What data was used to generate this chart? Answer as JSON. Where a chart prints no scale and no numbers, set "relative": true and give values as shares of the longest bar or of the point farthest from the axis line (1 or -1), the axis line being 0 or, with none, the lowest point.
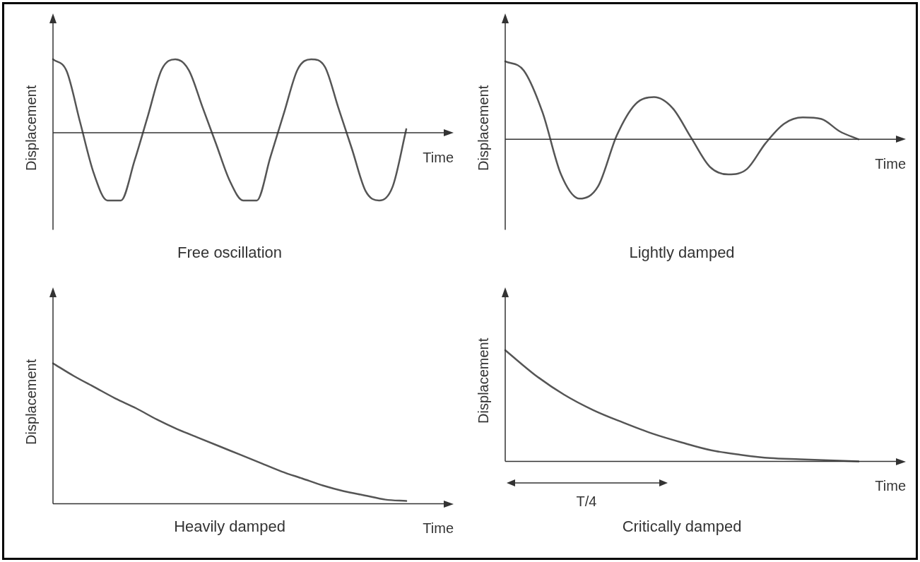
{
  "chart_data": [
    {
      "type": "line",
      "title": "Free oscillation",
      "xlabel": "Time",
      "ylabel": "Displacement",
      "relative": true,
      "categories": [
        null,
        null,
        null,
        null,
        null,
        null,
        null,
        null,
        null,
        null,
        null,
        null,
        null,
        null,
        null,
        null,
        null,
        null,
        null,
        null,
        null,
        null,
        null,
        null,
        null,
        null,
        null
      ],
      "series": [
        {
          "color": "#555555",
          "values": [
            1,
            0.84,
            0.14,
            -0.55,
            -0.92,
            -0.92,
            -0.38,
            0.24,
            0.86,
            1,
            0.85,
            0.35,
            -0.15,
            -0.65,
            -0.92,
            -0.92,
            -0.33,
            0.27,
            0.86,
            1,
            0.9,
            0.34,
            -0.22,
            -0.79,
            -0.92,
            -0.73,
            0.05
          ]
        }
      ]
    },
    {
      "type": "line",
      "title": "Lightly damped",
      "xlabel": "Time",
      "ylabel": "Displacement",
      "relative": true,
      "categories": [
        null,
        null,
        null,
        null,
        null,
        null,
        null,
        null,
        null,
        null,
        null,
        null,
        null,
        null,
        null,
        null,
        null,
        null,
        null,
        null
      ],
      "series": [
        {
          "color": "#555555",
          "values": [
            1,
            0.88,
            0.35,
            -0.45,
            -0.76,
            -0.6,
            0.05,
            0.45,
            0.54,
            0.4,
            0.02,
            -0.35,
            -0.45,
            -0.38,
            -0.05,
            0.2,
            0.28,
            0.26,
            0.1,
            0
          ]
        }
      ]
    },
    {
      "type": "line",
      "title": "Heavily damped",
      "xlabel": "Time",
      "ylabel": "Displacement",
      "relative": true,
      "categories": [
        null,
        null,
        null,
        null,
        null,
        null,
        null,
        null,
        null,
        null,
        null,
        null,
        null,
        null,
        null,
        null,
        null,
        null
      ],
      "series": [
        {
          "color": "#555555",
          "values": [
            1,
            0.91,
            0.83,
            0.75,
            0.68,
            0.6,
            0.53,
            0.47,
            0.41,
            0.35,
            0.29,
            0.23,
            0.18,
            0.13,
            0.09,
            0.06,
            0.03,
            0.02
          ]
        }
      ]
    },
    {
      "type": "line",
      "title": "Critically damped",
      "xlabel": "Time",
      "ylabel": "Displacement",
      "relative": true,
      "annotations": [
        "T/4"
      ],
      "categories": [
        null,
        null,
        null,
        null,
        null,
        null,
        null,
        null,
        null,
        null,
        null,
        null,
        null
      ],
      "series": [
        {
          "color": "#555555",
          "values": [
            1,
            0.78,
            0.6,
            0.46,
            0.35,
            0.25,
            0.17,
            0.1,
            0.06,
            0.03,
            0.02,
            0.01,
            0
          ]
        }
      ]
    }
  ]
}
